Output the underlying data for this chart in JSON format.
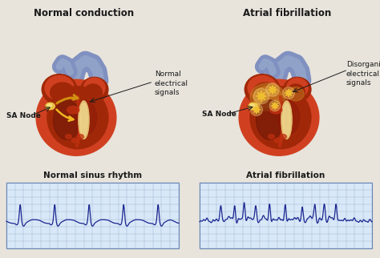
{
  "title_left": "Normal conduction",
  "title_right": "Atrial fibrillation",
  "label_sa_node_left": "SA Node",
  "label_sa_node_right": "SA Node",
  "label_normal_signals": "Normal\nelectrical\nsignals",
  "label_disorganized_signals": "Disorganized\nelectrical\nsignals",
  "ecg_label_left": "Normal sinus rhythm",
  "ecg_label_right": "Atrial fibrillation",
  "bg_color": "#e8e4dc",
  "ecg_bg_color": "#d8e8f8",
  "ecg_grid_color": "#90a8c8",
  "ecg_line_color": "#1a2590",
  "heart_red1": "#c03010",
  "heart_red2": "#a02808",
  "heart_red3": "#d04020",
  "heart_orange": "#e06020",
  "vessel_color": "#8090c0",
  "vessel_light": "#a0b4d0",
  "sa_node_color": "#e8c040",
  "signal_arrow_color": "#d09010",
  "signal_arrow_light": "#f0b820",
  "star_color": "#f0c030",
  "star_glow": "#f8d870",
  "atrium_glow": "#c07820",
  "text_color": "#1a1a1a",
  "title_fontsize": 8.5,
  "label_fontsize": 6.5,
  "ecg_label_fontsize": 7.5,
  "heart_inner_dark": "#701808",
  "valve_color": "#e8c878",
  "septum_color": "#d0a040"
}
